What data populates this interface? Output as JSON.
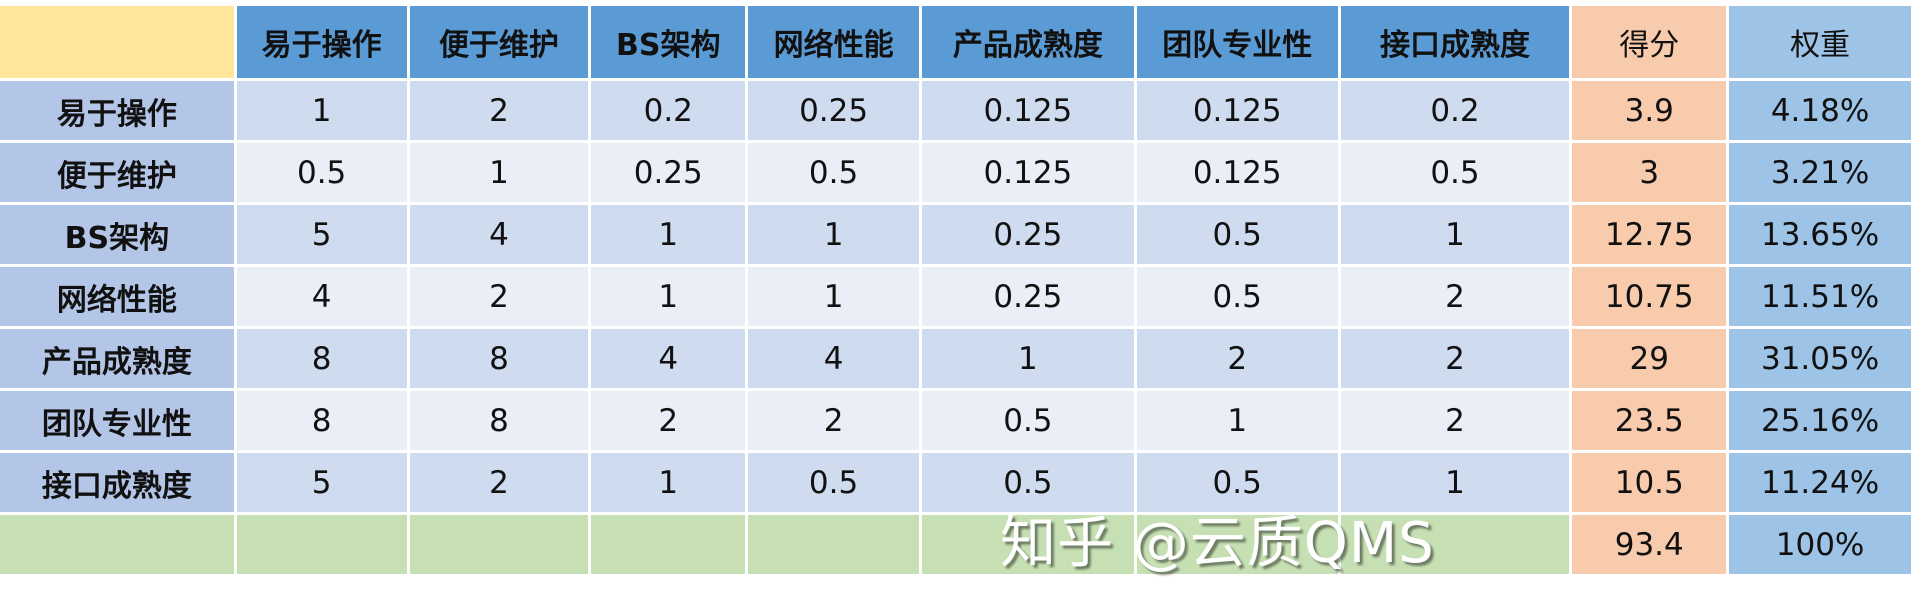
{
  "table": {
    "columns": [
      "易于操作",
      "便于维护",
      "BS架构",
      "网络性能",
      "产品成熟度",
      "团队专业性",
      "接口成熟度"
    ],
    "score_header": "得分",
    "weight_header": "权重",
    "rows": [
      {
        "label": "易于操作",
        "values": [
          "1",
          "2",
          "0.2",
          "0.25",
          "0.125",
          "0.125",
          "0.2"
        ],
        "score": "3.9",
        "weight": "4.18%"
      },
      {
        "label": "便于维护",
        "values": [
          "0.5",
          "1",
          "0.25",
          "0.5",
          "0.125",
          "0.125",
          "0.5"
        ],
        "score": "3",
        "weight": "3.21%"
      },
      {
        "label": "BS架构",
        "values": [
          "5",
          "4",
          "1",
          "1",
          "0.25",
          "0.5",
          "1"
        ],
        "score": "12.75",
        "weight": "13.65%"
      },
      {
        "label": "网络性能",
        "values": [
          "4",
          "2",
          "1",
          "1",
          "0.25",
          "0.5",
          "2"
        ],
        "score": "10.75",
        "weight": "11.51%"
      },
      {
        "label": "产品成熟度",
        "values": [
          "8",
          "8",
          "4",
          "4",
          "1",
          "2",
          "2"
        ],
        "score": "29",
        "weight": "31.05%"
      },
      {
        "label": "团队专业性",
        "values": [
          "8",
          "8",
          "2",
          "2",
          "0.5",
          "1",
          "2"
        ],
        "score": "23.5",
        "weight": "25.16%"
      },
      {
        "label": "接口成熟度",
        "values": [
          "5",
          "2",
          "1",
          "0.5",
          "0.5",
          "0.5",
          "1"
        ],
        "score": "10.5",
        "weight": "11.24%"
      }
    ],
    "total": {
      "score": "93.4",
      "weight": "100%"
    }
  },
  "watermark": "知乎 @云质QMS",
  "colors": {
    "corner": "#FFE699",
    "header": "#5B9BD5",
    "row_label": "#B4C6E7",
    "score": "#F8CBAD",
    "weight": "#9DC3E6",
    "total_row": "#C6E0B4"
  }
}
